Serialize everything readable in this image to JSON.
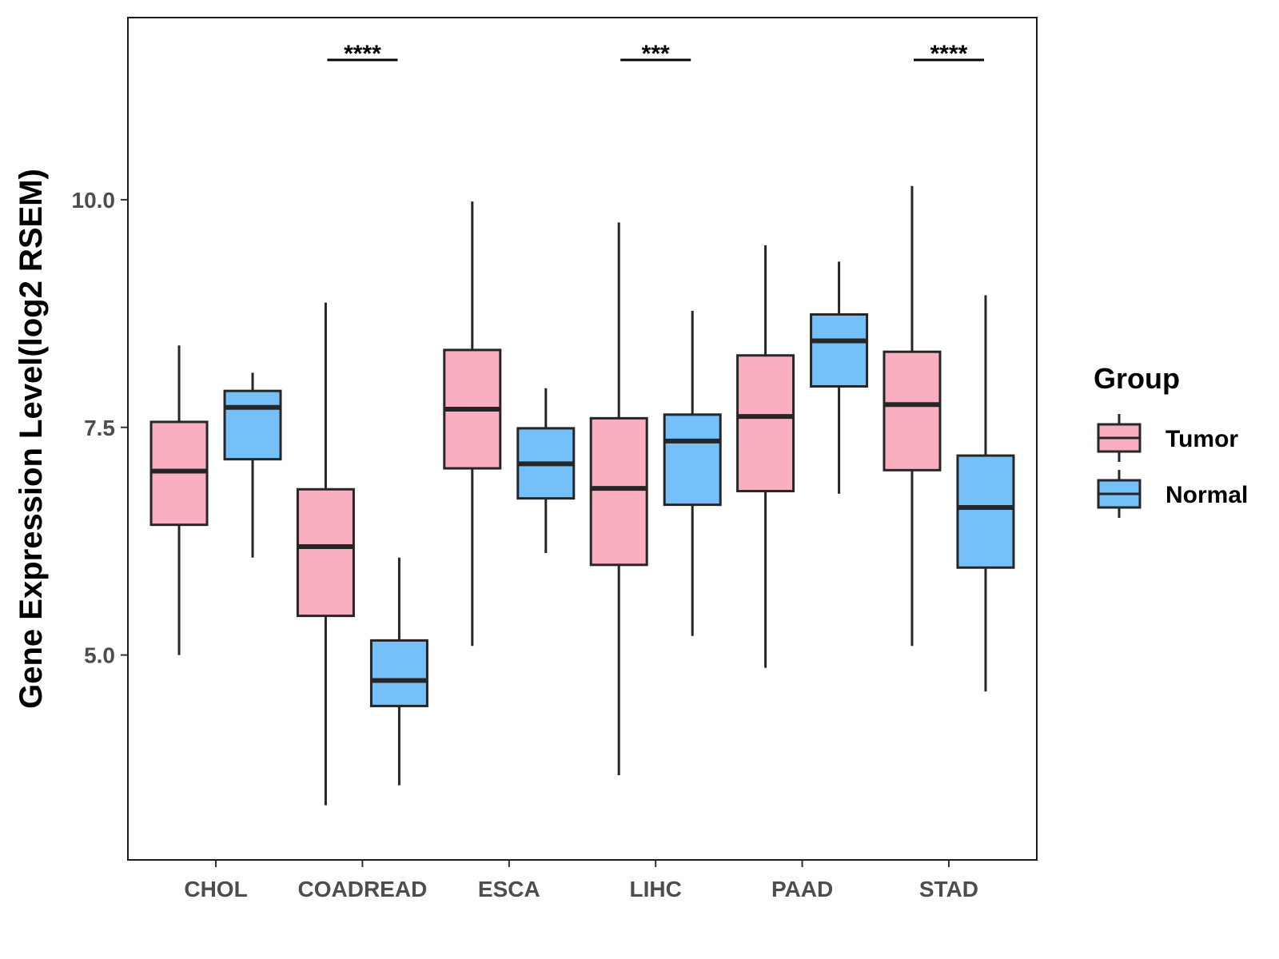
{
  "chart_data": {
    "type": "box",
    "ylabel": "Gene Expression Level(log2 RSEM)",
    "xlabel": "",
    "ylim": [
      2.75,
      12.0
    ],
    "yticks": [
      5.0,
      7.5,
      10.0
    ],
    "ytick_labels": [
      "5.0",
      "7.5",
      "10.0"
    ],
    "categories": [
      "CHOL",
      "COADREAD",
      "ESCA",
      "LIHC",
      "PAAD",
      "STAD"
    ],
    "legend": {
      "title": "Group",
      "position": "right"
    },
    "series": [
      {
        "name": "Tumor",
        "color": "#FAAFC0",
        "boxes": [
          {
            "min": 5.0,
            "q1": 6.43,
            "median": 7.02,
            "q3": 7.56,
            "max": 8.4
          },
          {
            "min": 3.35,
            "q1": 5.43,
            "median": 6.19,
            "q3": 6.82,
            "max": 8.87
          },
          {
            "min": 5.1,
            "q1": 7.05,
            "median": 7.7,
            "q3": 8.35,
            "max": 9.98
          },
          {
            "min": 3.68,
            "q1": 5.99,
            "median": 6.83,
            "q3": 7.6,
            "max": 9.75
          },
          {
            "min": 4.86,
            "q1": 6.8,
            "median": 7.62,
            "q3": 8.29,
            "max": 9.5
          },
          {
            "min": 5.1,
            "q1": 7.03,
            "median": 7.75,
            "q3": 8.33,
            "max": 10.15
          }
        ]
      },
      {
        "name": "Normal",
        "color": "#75C0F8",
        "boxes": [
          {
            "min": 6.07,
            "q1": 7.15,
            "median": 7.72,
            "q3": 7.9,
            "max": 8.1
          },
          {
            "min": 3.57,
            "q1": 4.44,
            "median": 4.72,
            "q3": 5.16,
            "max": 6.07
          },
          {
            "min": 6.12,
            "q1": 6.72,
            "median": 7.1,
            "q3": 7.49,
            "max": 7.93
          },
          {
            "min": 5.21,
            "q1": 6.65,
            "median": 7.35,
            "q3": 7.64,
            "max": 8.78
          },
          {
            "min": 6.77,
            "q1": 7.95,
            "median": 8.45,
            "q3": 8.74,
            "max": 9.32
          },
          {
            "min": 4.6,
            "q1": 5.96,
            "median": 6.62,
            "q3": 7.19,
            "max": 8.95
          }
        ]
      }
    ],
    "significance": [
      {
        "category": "COADREAD",
        "label": "****"
      },
      {
        "category": "LIHC",
        "label": "***"
      },
      {
        "category": "STAD",
        "label": "****"
      }
    ]
  }
}
